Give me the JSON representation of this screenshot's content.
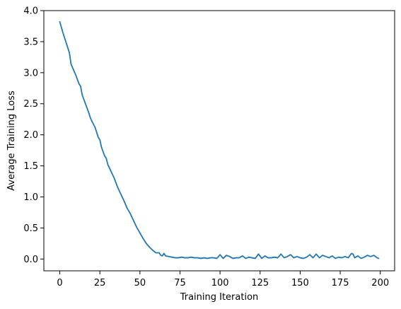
{
  "chart_data": {
    "type": "line",
    "title": "",
    "xlabel": "Training Iteration",
    "ylabel": "Average Training Loss",
    "xlim": [
      -9.95,
      208.95
    ],
    "ylim": [
      -0.19,
      4.0
    ],
    "xticks": [
      0,
      25,
      50,
      75,
      100,
      125,
      150,
      175,
      200
    ],
    "yticks": [
      0.0,
      0.5,
      1.0,
      1.5,
      2.0,
      2.5,
      3.0,
      3.5,
      4.0
    ],
    "xtick_labels": [
      "0",
      "25",
      "50",
      "75",
      "100",
      "125",
      "150",
      "175",
      "200"
    ],
    "ytick_labels": [
      "0.0",
      "0.5",
      "1.0",
      "1.5",
      "2.0",
      "2.5",
      "3.0",
      "3.5",
      "4.0"
    ],
    "grid": false,
    "legend": "none",
    "colors": {
      "series": "#1f77b4",
      "axes": "#000000",
      "background": "#ffffff"
    },
    "series": [
      {
        "x": [
          0,
          2,
          4,
          6,
          7,
          8,
          10,
          12,
          13,
          14,
          16,
          18,
          19,
          20,
          22,
          24,
          25,
          26,
          28,
          29,
          30,
          32,
          34,
          35,
          36,
          38,
          40,
          42,
          44,
          46,
          48,
          50,
          52,
          54,
          56,
          58,
          60,
          62,
          63,
          64,
          65,
          66,
          68,
          70,
          72,
          74,
          76,
          78,
          80,
          82,
          84,
          86,
          88,
          90,
          92,
          94,
          96,
          98,
          100,
          102,
          104,
          106,
          108,
          110,
          112,
          114,
          116,
          118,
          120,
          122,
          124,
          126,
          128,
          130,
          132,
          134,
          136,
          138,
          140,
          142,
          144,
          146,
          148,
          150,
          152,
          154,
          156,
          158,
          160,
          162,
          164,
          166,
          168,
          170,
          172,
          174,
          176,
          178,
          180,
          182,
          183,
          184,
          186,
          188,
          190,
          192,
          194,
          196,
          198,
          199
        ],
        "y": [
          3.82,
          3.64,
          3.48,
          3.32,
          3.14,
          3.08,
          2.96,
          2.82,
          2.78,
          2.64,
          2.5,
          2.36,
          2.28,
          2.22,
          2.12,
          1.96,
          1.92,
          1.8,
          1.66,
          1.62,
          1.52,
          1.41,
          1.3,
          1.23,
          1.16,
          1.05,
          0.94,
          0.82,
          0.73,
          0.62,
          0.51,
          0.42,
          0.33,
          0.25,
          0.19,
          0.14,
          0.1,
          0.1,
          0.06,
          0.05,
          0.09,
          0.05,
          0.04,
          0.03,
          0.02,
          0.02,
          0.03,
          0.02,
          0.02,
          0.03,
          0.02,
          0.02,
          0.01,
          0.02,
          0.01,
          0.02,
          0.02,
          0.01,
          0.07,
          0.01,
          0.06,
          0.04,
          0.01,
          0.02,
          0.02,
          0.05,
          0.01,
          0.03,
          0.02,
          0.01,
          0.08,
          0.01,
          0.05,
          0.02,
          0.02,
          0.03,
          0.02,
          0.08,
          0.02,
          0.04,
          0.07,
          0.02,
          0.04,
          0.02,
          0.01,
          0.03,
          0.07,
          0.02,
          0.08,
          0.02,
          0.06,
          0.04,
          0.02,
          0.05,
          0.01,
          0.03,
          0.02,
          0.04,
          0.02,
          0.09,
          0.08,
          0.02,
          0.05,
          0.01,
          0.03,
          0.06,
          0.04,
          0.06,
          0.02,
          0.01
        ]
      }
    ]
  }
}
